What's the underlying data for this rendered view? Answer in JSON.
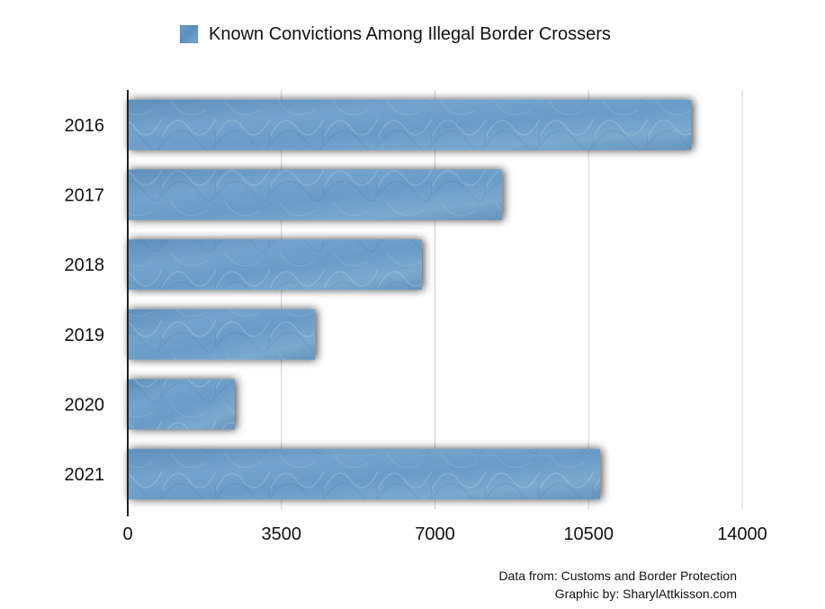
{
  "chart_data": {
    "type": "bar",
    "orientation": "horizontal",
    "categories": [
      "2016",
      "2017",
      "2018",
      "2019",
      "2020",
      "2021"
    ],
    "series": [
      {
        "name": "Known Convictions Among Illegal Border Crossers",
        "values": [
          12842,
          8531,
          6698,
          4269,
          2438,
          10763
        ]
      }
    ],
    "xlim": [
      0,
      14000
    ],
    "xticks": [
      "0",
      "3500",
      "7000",
      "10500",
      "14000"
    ],
    "grid": true,
    "legend_position": "top-center",
    "colors": {
      "bar": "#6d9dc6",
      "bar_dark": "#5887b3",
      "grid": "#cfcfcf",
      "axis": "#222222"
    }
  },
  "credits": {
    "source": "Data from: Customs and Border Protection",
    "graphic": "Graphic by: SharylAttkisson.com"
  }
}
